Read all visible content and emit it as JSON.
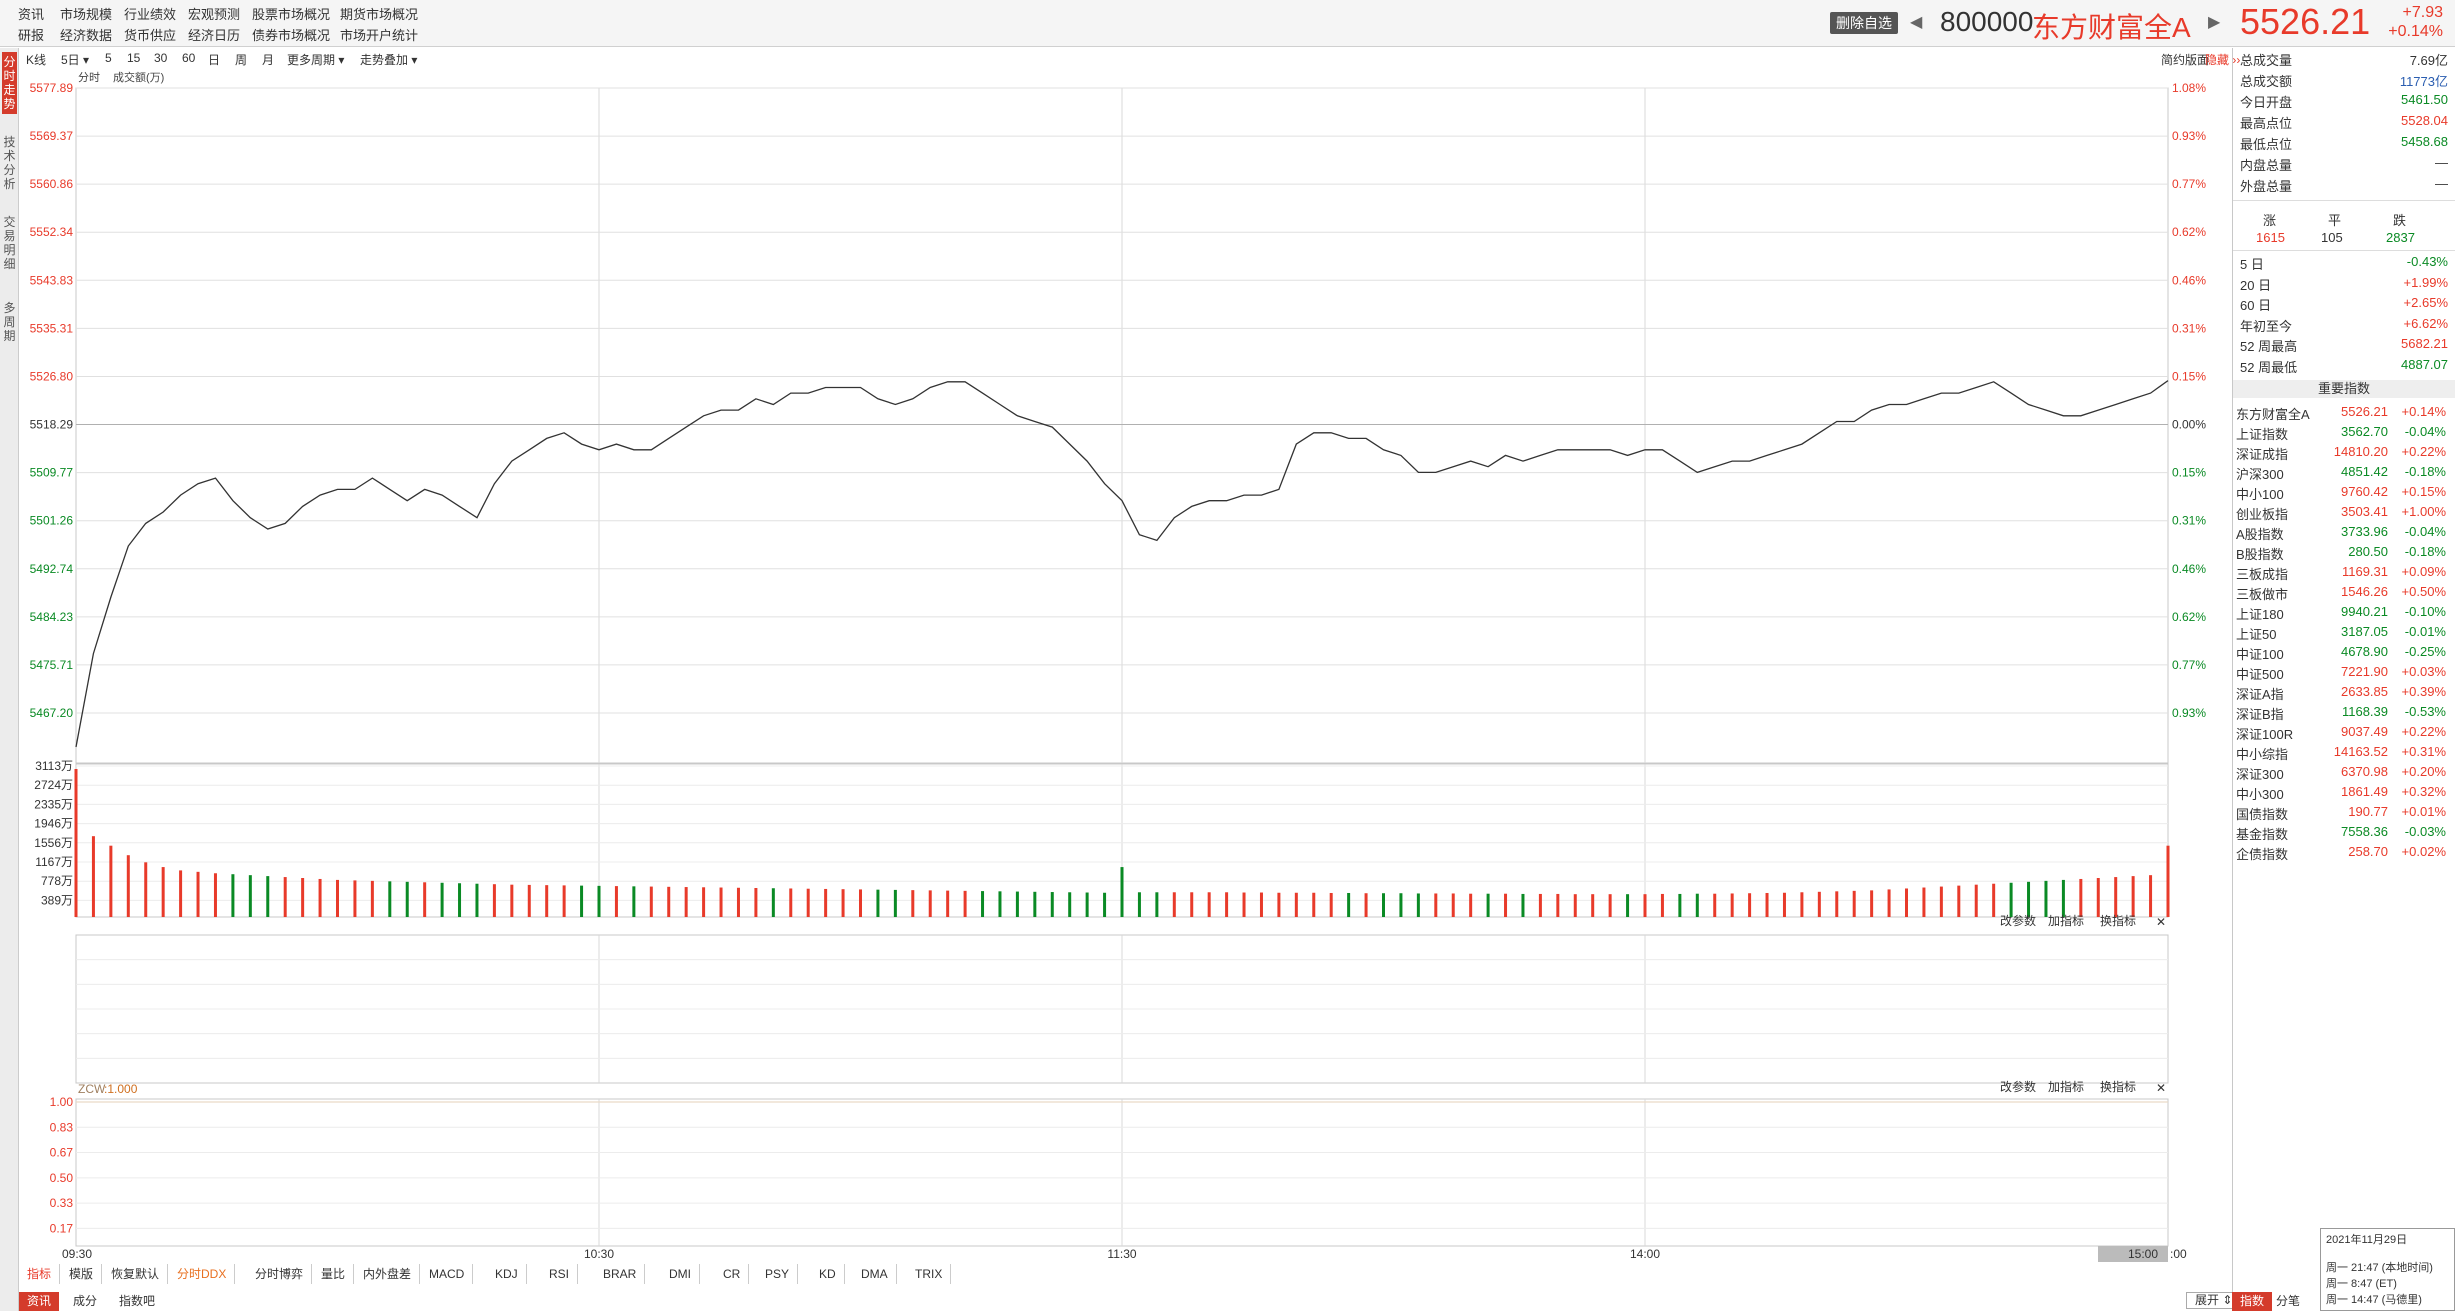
{
  "nav": {
    "row1": [
      "资讯",
      "市场规模",
      "行业绩效",
      "宏观预测",
      "股票市场概况",
      "期货市场概况"
    ],
    "row2": [
      "研报",
      "经济数据",
      "货币供应",
      "经济日历",
      "债券市场概况",
      "市场开户统计"
    ]
  },
  "header": {
    "delete_btn": "删除自选",
    "code": "800000",
    "name": "东方财富全A",
    "price": "5526.21",
    "change": "+7.93",
    "change_pct": "+0.14%"
  },
  "left_tabs": [
    "分时走势",
    "技术分析",
    "交易明细",
    "多周期"
  ],
  "toolbar": {
    "kline": "K线",
    "days": "5日",
    "periods": [
      "5",
      "15",
      "30",
      "60",
      "日",
      "周",
      "月"
    ],
    "more": "更多周期",
    "overlay": "走势叠加",
    "simple": "简约版面",
    "hide": "隐藏 ››",
    "sub": "分时",
    "vol_unit": "成交额(万)"
  },
  "price_axis": [
    "5577.89",
    "5569.37",
    "5560.86",
    "5552.34",
    "5543.83",
    "5535.31",
    "5526.80",
    "5518.29",
    "5509.77",
    "5501.26",
    "5492.74",
    "5484.23",
    "5475.71",
    "5467.20"
  ],
  "pct_axis": [
    "1.08%",
    "0.93%",
    "0.77%",
    "0.62%",
    "0.46%",
    "0.31%",
    "0.15%",
    "0.00%",
    "0.15%",
    "0.31%",
    "0.46%",
    "0.62%",
    "0.77%",
    "0.93%"
  ],
  "vol_axis": [
    "3113万",
    "2724万",
    "2335万",
    "1946万",
    "1556万",
    "1167万",
    "778万",
    "389万"
  ],
  "ind_axis": [
    "1.00",
    "0.83",
    "0.67",
    "0.50",
    "0.33",
    "0.17"
  ],
  "ind_controls": [
    "改参数",
    "加指标",
    "换指标"
  ],
  "zcw": {
    "name": "ZCW",
    "val": ":1.000"
  },
  "time_axis": [
    "09:30",
    "10:30",
    "11:30",
    "14:00",
    "15:00"
  ],
  "time_suffix": ":00",
  "stats": [
    [
      "总成交量",
      "7.69亿",
      "#333"
    ],
    [
      "总成交额",
      "11773亿",
      "#2a5db0"
    ],
    [
      "今日开盘",
      "5461.50",
      "#0a8a24"
    ],
    [
      "最高点位",
      "5528.04",
      "#e83a2a"
    ],
    [
      "最低点位",
      "5458.68",
      "#0a8a24"
    ],
    [
      "内盘总量",
      "—",
      "#333"
    ],
    [
      "外盘总量",
      "—",
      "#333"
    ]
  ],
  "breadth": {
    "labels": [
      "涨",
      "平",
      "跌"
    ],
    "values": [
      "1615",
      "105",
      "2837"
    ]
  },
  "periods": [
    [
      "5 日",
      "-0.43%",
      "#0a8a24"
    ],
    [
      "20 日",
      "+1.99%",
      "#e83a2a"
    ],
    [
      "60 日",
      "+2.65%",
      "#e83a2a"
    ],
    [
      "年初至今",
      "+6.62%",
      "#e83a2a"
    ],
    [
      "52 周最高",
      "5682.21",
      "#e83a2a"
    ],
    [
      "52 周最低",
      "4887.07",
      "#0a8a24"
    ]
  ],
  "indices_title": "重要指数",
  "indices": [
    [
      "东方财富全A",
      "5526.21",
      "+0.14%"
    ],
    [
      "上证指数",
      "3562.70",
      "-0.04%"
    ],
    [
      "深证成指",
      "14810.20",
      "+0.22%"
    ],
    [
      "沪深300",
      "4851.42",
      "-0.18%"
    ],
    [
      "中小100",
      "9760.42",
      "+0.15%"
    ],
    [
      "创业板指",
      "3503.41",
      "+1.00%"
    ],
    [
      "A股指数",
      "3733.96",
      "-0.04%"
    ],
    [
      "B股指数",
      "280.50",
      "-0.18%"
    ],
    [
      "三板成指",
      "1169.31",
      "+0.09%"
    ],
    [
      "三板做市",
      "1546.26",
      "+0.50%"
    ],
    [
      "上证180",
      "9940.21",
      "-0.10%"
    ],
    [
      "上证50",
      "3187.05",
      "-0.01%"
    ],
    [
      "中证100",
      "4678.90",
      "-0.25%"
    ],
    [
      "中证500",
      "7221.90",
      "+0.03%"
    ],
    [
      "深证A指",
      "2633.85",
      "+0.39%"
    ],
    [
      "深证B指",
      "1168.39",
      "-0.53%"
    ],
    [
      "深证100R",
      "9037.49",
      "+0.22%"
    ],
    [
      "中小综指",
      "14163.52",
      "+0.31%"
    ],
    [
      "深证300",
      "6370.98",
      "+0.20%"
    ],
    [
      "中小300",
      "1861.49",
      "+0.32%"
    ],
    [
      "国债指数",
      "190.77",
      "+0.01%"
    ],
    [
      "基金指数",
      "7558.36",
      "-0.03%"
    ],
    [
      "企债指数",
      "258.70",
      "+0.02%"
    ]
  ],
  "bottom_tabs": [
    "指标",
    "模版",
    "恢复默认",
    "分时DDX",
    "分时博弈",
    "量比",
    "内外盘差",
    "MACD",
    "KDJ",
    "RSI",
    "BRAR",
    "DMI",
    "CR",
    "PSY",
    "KD",
    "DMA",
    "TRIX"
  ],
  "bottom2": [
    "资讯",
    "成分",
    "指数吧"
  ],
  "expand": "展开 ⇕",
  "right_btm": [
    "指数",
    "分笔"
  ],
  "datetime": {
    "date": "2021年11月29日",
    "l1": "周一 21:47 (本地时间)",
    "l2": "周一 8:47 (ET)",
    "l3": "周一 14:47 (马德里)"
  },
  "chart_data": {
    "type": "line",
    "prev_close": 5518.29,
    "ylim": [
      5458.68,
      5577.89
    ],
    "x": [
      0,
      2,
      4,
      6,
      8,
      10,
      12,
      14,
      16,
      18,
      20,
      22,
      24,
      26,
      28,
      30,
      32,
      34,
      36,
      38,
      40,
      42,
      44,
      46,
      48,
      50,
      52,
      54,
      56,
      58,
      60,
      62,
      64,
      66,
      68,
      70,
      72,
      74,
      76,
      78,
      80,
      82,
      84,
      86,
      88,
      90,
      92,
      94,
      96,
      98,
      100,
      102,
      104,
      106,
      108,
      110,
      112,
      114,
      116,
      118,
      120,
      122,
      124,
      126,
      128,
      130,
      132,
      134,
      136,
      138,
      140,
      142,
      144,
      146,
      148,
      150,
      152,
      154,
      156,
      158,
      160,
      162,
      164,
      166,
      168,
      170,
      172,
      174,
      176,
      178,
      180,
      182,
      184,
      186,
      188,
      190,
      192,
      194,
      196,
      198,
      200,
      202,
      204,
      206,
      208,
      210,
      212,
      214,
      216,
      218,
      220,
      222,
      224,
      226,
      228,
      230,
      232,
      234,
      236,
      238,
      240
    ],
    "values": [
      5461.5,
      5478,
      5488,
      5497,
      5501,
      5503,
      5506,
      5508,
      5509,
      5505,
      5502,
      5500,
      5501,
      5504,
      5506,
      5507,
      5507,
      5509,
      5507,
      5505,
      5507,
      5506,
      5504,
      5502,
      5508,
      5512,
      5514,
      5516,
      5517,
      5515,
      5514,
      5515,
      5514,
      5514,
      5516,
      5518,
      5520,
      5521,
      5521,
      5523,
      5522,
      5524,
      5524,
      5525,
      5525,
      5525,
      5523,
      5522,
      5523,
      5525,
      5526,
      5526,
      5524,
      5522,
      5520,
      5519,
      5518,
      5515,
      5512,
      5508,
      5505,
      5499,
      5498,
      5502,
      5504,
      5505,
      5505,
      5506,
      5506,
      5507,
      5515,
      5517,
      5517,
      5516,
      5516,
      5514,
      5513,
      5510,
      5510,
      5511,
      5512,
      5511,
      5513,
      5512,
      5513,
      5514,
      5514,
      5514,
      5514,
      5513,
      5514,
      5514,
      5512,
      5510,
      5511,
      5512,
      5512,
      5513,
      5514,
      5515,
      5517,
      5519,
      5519,
      5521,
      5522,
      5522,
      5523,
      5524,
      5524,
      5525,
      5526,
      5524,
      5522,
      5521,
      5520,
      5520,
      5521,
      5522,
      5523,
      5524,
      5526.21
    ],
    "volume_max": 3113,
    "volumes": [
      3113,
      1700,
      1500,
      1300,
      1150,
      1050,
      980,
      950,
      920,
      900,
      880,
      860,
      840,
      820,
      800,
      780,
      770,
      760,
      750,
      740,
      730,
      720,
      710,
      700,
      690,
      680,
      675,
      670,
      665,
      660,
      655,
      650,
      645,
      640,
      635,
      630,
      625,
      620,
      615,
      610,
      605,
      600,
      595,
      590,
      585,
      580,
      575,
      570,
      565,
      560,
      555,
      550,
      545,
      540,
      535,
      530,
      525,
      520,
      515,
      510,
      1050,
      520,
      520,
      520,
      520,
      520,
      520,
      515,
      515,
      510,
      510,
      510,
      505,
      505,
      500,
      500,
      500,
      495,
      495,
      495,
      490,
      490,
      490,
      485,
      485,
      485,
      480,
      480,
      480,
      480,
      480,
      485,
      485,
      490,
      490,
      495,
      500,
      505,
      510,
      520,
      530,
      540,
      550,
      560,
      580,
      600,
      620,
      640,
      660,
      680,
      700,
      720,
      740,
      760,
      780,
      800,
      820,
      840,
      860,
      880,
      1500
    ]
  }
}
